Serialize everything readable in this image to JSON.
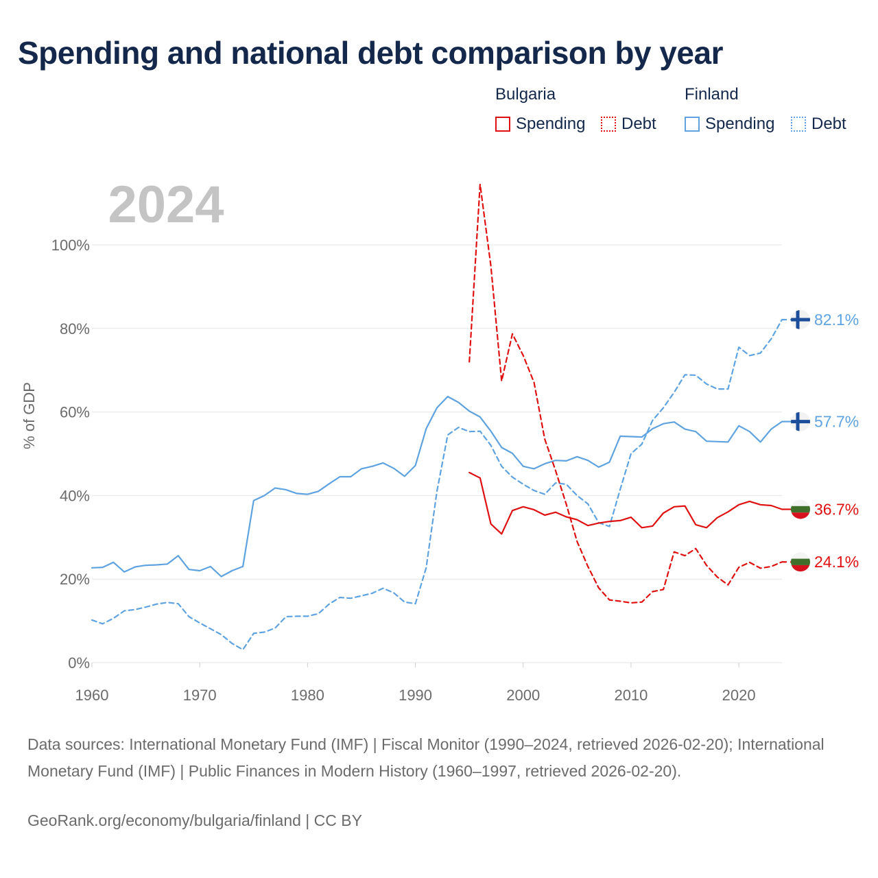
{
  "title": "Spending and national debt comparison by year",
  "legend": {
    "groups": [
      {
        "country": "Bulgaria",
        "spending_label": "Spending",
        "debt_label": "Debt"
      },
      {
        "country": "Finland",
        "spending_label": "Spending",
        "debt_label": "Debt"
      }
    ]
  },
  "colors": {
    "bulgaria": "#e01010",
    "finland": "#5ea3e0",
    "grid": "#e6e6e6",
    "year_watermark": "#c4c4c4"
  },
  "footer": {
    "source": "Data sources: International Monetary Fund (IMF) | Fiscal Monitor (1990–2024, retrieved 2026-02-20); International Monetary Fund (IMF) | Public Finances in Modern History (1960–1997, retrieved 2026-02-20).",
    "credit": "GeoRank.org/economy/bulgaria/finland | CC BY"
  },
  "chart_data": {
    "type": "line",
    "title": "Spending and national debt comparison by year",
    "year_watermark": "2024",
    "xlabel": "",
    "ylabel": "% of GDP",
    "xlim": [
      1960,
      2024
    ],
    "ylim": [
      0,
      100
    ],
    "x_ticks": [
      1960,
      1970,
      1980,
      1990,
      2000,
      2010,
      2020
    ],
    "x_tick_labels": [
      "1960",
      "1970",
      "1980",
      "1990",
      "2000",
      "2010",
      "2020"
    ],
    "y_ticks": [
      0,
      20,
      40,
      60,
      80,
      100
    ],
    "y_tick_labels": [
      "0%",
      "20%",
      "40%",
      "60%",
      "80%",
      "100%"
    ],
    "grid": true,
    "legend_position": "top-right",
    "series": [
      {
        "name": "Finland Spending",
        "country": "Finland",
        "metric": "Spending",
        "color": "#5ea3e0",
        "dash": "solid",
        "end_label": "57.7%",
        "flag": "finland",
        "x": [
          1960,
          1961,
          1962,
          1963,
          1964,
          1965,
          1966,
          1967,
          1968,
          1969,
          1970,
          1971,
          1972,
          1973,
          1974,
          1975,
          1976,
          1977,
          1978,
          1979,
          1980,
          1981,
          1982,
          1983,
          1984,
          1985,
          1986,
          1987,
          1988,
          1989,
          1990,
          1991,
          1992,
          1993,
          1994,
          1995,
          1996,
          1997,
          1998,
          1999,
          2000,
          2001,
          2002,
          2003,
          2004,
          2005,
          2006,
          2007,
          2008,
          2009,
          2010,
          2011,
          2012,
          2013,
          2014,
          2015,
          2016,
          2017,
          2018,
          2019,
          2020,
          2021,
          2022,
          2023,
          2024
        ],
        "values": [
          22.7,
          22.8,
          24.0,
          21.7,
          22.9,
          23.3,
          23.4,
          23.6,
          25.6,
          22.3,
          22.0,
          23.0,
          20.6,
          22.0,
          23.0,
          38.8,
          40.0,
          41.8,
          41.4,
          40.5,
          40.3,
          41.0,
          42.8,
          44.5,
          44.5,
          46.4,
          47.0,
          47.8,
          46.5,
          44.6,
          47.2,
          56.0,
          61.0,
          63.7,
          62.3,
          60.2,
          58.8,
          55.4,
          51.5,
          50.1,
          47.0,
          46.4,
          47.6,
          48.4,
          48.3,
          49.3,
          48.4,
          46.8,
          48.0,
          54.2,
          54.1,
          54.0,
          56.0,
          57.2,
          57.6,
          55.9,
          55.3,
          53.0,
          52.9,
          52.8,
          56.7,
          55.3,
          52.8,
          55.9,
          57.7
        ]
      },
      {
        "name": "Finland Debt",
        "country": "Finland",
        "metric": "Debt",
        "color": "#5ea3e0",
        "dash": "dashed",
        "end_label": "82.1%",
        "flag": "finland",
        "x": [
          1960,
          1961,
          1962,
          1963,
          1964,
          1965,
          1966,
          1967,
          1968,
          1969,
          1970,
          1971,
          1972,
          1973,
          1974,
          1975,
          1976,
          1977,
          1978,
          1979,
          1980,
          1981,
          1982,
          1983,
          1984,
          1985,
          1986,
          1987,
          1988,
          1989,
          1990,
          1991,
          1992,
          1993,
          1994,
          1995,
          1996,
          1997,
          1998,
          1999,
          2000,
          2001,
          2002,
          2003,
          2004,
          2005,
          2006,
          2007,
          2008,
          2009,
          2010,
          2011,
          2012,
          2013,
          2014,
          2015,
          2016,
          2017,
          2018,
          2019,
          2020,
          2021,
          2022,
          2023,
          2024
        ],
        "values": [
          10.2,
          9.3,
          10.6,
          12.4,
          12.7,
          13.3,
          14.0,
          14.4,
          14.1,
          11.0,
          9.5,
          8.1,
          6.7,
          4.6,
          3.1,
          7.0,
          7.3,
          8.3,
          11.0,
          11.1,
          11.1,
          11.7,
          14.0,
          15.6,
          15.4,
          16.0,
          16.6,
          17.8,
          16.7,
          14.5,
          14.1,
          22.7,
          41.0,
          54.5,
          56.3,
          55.3,
          55.4,
          52.0,
          47.0,
          44.4,
          42.7,
          41.2,
          40.3,
          43.0,
          42.7,
          40.0,
          38.0,
          33.5,
          32.6,
          41.5,
          50.0,
          52.3,
          58.0,
          61.0,
          64.7,
          68.9,
          68.8,
          66.7,
          65.5,
          65.5,
          75.5,
          73.5,
          74.1,
          77.5,
          82.1
        ]
      },
      {
        "name": "Bulgaria Spending",
        "country": "Bulgaria",
        "metric": "Spending",
        "color": "#e01010",
        "dash": "solid",
        "end_label": "36.7%",
        "flag": "bulgaria",
        "x": [
          1995,
          1996,
          1997,
          1998,
          1999,
          2000,
          2001,
          2002,
          2003,
          2004,
          2005,
          2006,
          2007,
          2008,
          2009,
          2010,
          2011,
          2012,
          2013,
          2014,
          2015,
          2016,
          2017,
          2018,
          2019,
          2020,
          2021,
          2022,
          2023,
          2024
        ],
        "values": [
          45.5,
          44.2,
          33.2,
          30.8,
          36.4,
          37.3,
          36.6,
          35.3,
          36.0,
          34.9,
          34.2,
          32.8,
          33.4,
          33.8,
          34.0,
          34.8,
          32.3,
          32.7,
          35.8,
          37.3,
          37.5,
          33.0,
          32.3,
          34.7,
          36.1,
          37.8,
          38.6,
          37.8,
          37.6,
          36.7
        ]
      },
      {
        "name": "Bulgaria Debt",
        "country": "Bulgaria",
        "metric": "Debt",
        "color": "#e01010",
        "dash": "dashed",
        "end_label": "24.1%",
        "flag": "bulgaria",
        "x": [
          1995,
          1996,
          1997,
          1998,
          1999,
          2000,
          2001,
          2002,
          2003,
          2004,
          2005,
          2006,
          2007,
          2008,
          2009,
          2010,
          2011,
          2012,
          2013,
          2014,
          2015,
          2016,
          2017,
          2018,
          2019,
          2020,
          2021,
          2022,
          2023,
          2024
        ],
        "values": [
          72.0,
          114.5,
          95.0,
          67.4,
          78.7,
          73.5,
          67.1,
          53.5,
          46.0,
          37.9,
          29.0,
          23.0,
          17.9,
          15.0,
          14.7,
          14.3,
          14.5,
          17.0,
          17.5,
          26.5,
          25.6,
          27.3,
          23.3,
          20.5,
          18.6,
          22.8,
          24.0,
          22.6,
          23.0,
          24.1
        ]
      }
    ]
  }
}
